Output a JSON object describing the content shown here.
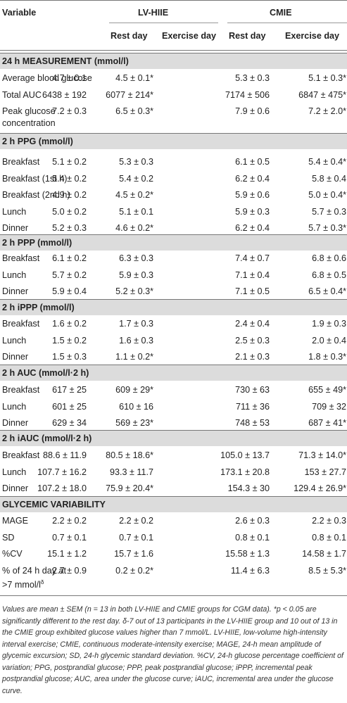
{
  "header": {
    "variable": "Variable",
    "group1": "LV-HIIE",
    "group2": "CMIE",
    "rest": "Rest day",
    "exercise": "Exercise day"
  },
  "sections": [
    {
      "title": "24 h MEASUREMENT (mmol/l)",
      "rows": [
        {
          "label": "Average blood glucose",
          "v": [
            "4.7 ± 0.1",
            "4.5 ± 0.1*",
            "5.3 ± 0.3",
            "5.1 ± 0.3*"
          ]
        },
        {
          "label": "Total AUC",
          "v": [
            "6438 ± 192",
            "6077 ± 214*",
            "7174 ± 506",
            "6847 ± 475*"
          ]
        },
        {
          "label": "Peak glucose",
          "label2": "concentration",
          "v": [
            "7.2 ± 0.3",
            "6.5 ± 0.3*",
            "7.9 ± 0.6",
            "7.2 ± 2.0*"
          ]
        }
      ]
    },
    {
      "title": "2 h PPG (mmol/l)",
      "rows": [
        {
          "label": "Breakfast",
          "v": [
            "5.1 ± 0.2",
            "5.3 ± 0.3",
            "6.1 ± 0.5",
            "5.4 ± 0.4*"
          ]
        },
        {
          "label": "Breakfast (1st h)",
          "v": [
            "5.4 ± 0.2",
            "5.4 ± 0.2",
            "6.2 ± 0.4",
            "5.8 ± 0.4"
          ]
        },
        {
          "label": "Breakfast (2nd h)",
          "v": [
            "4.9 ± 0.2",
            "4.5 ± 0.2*",
            "5.9 ± 0.6",
            "5.0 ± 0.4*"
          ]
        },
        {
          "label": "Lunch",
          "v": [
            "5.0 ± 0.2",
            "5.1 ± 0.1",
            "5.9 ± 0.3",
            "5.7 ± 0.3"
          ]
        },
        {
          "label": "Dinner",
          "v": [
            "5.2 ± 0.3",
            "4.6 ± 0.2*",
            "6.2 ± 0.4",
            "5.7 ± 0.3*"
          ]
        }
      ]
    },
    {
      "title": "2 h PPP (mmol/l)",
      "rows": [
        {
          "label": "Breakfast",
          "v": [
            "6.1 ± 0.2",
            "6.3 ± 0.3",
            "7.4 ± 0.7",
            "6.8 ± 0.6"
          ]
        },
        {
          "label": "Lunch",
          "v": [
            "5.7 ± 0.2",
            "5.9 ± 0.3",
            "7.1 ± 0.4",
            "6.8 ± 0.5"
          ]
        },
        {
          "label": "Dinner",
          "v": [
            "5.9 ± 0.4",
            "5.2 ± 0.3*",
            "7.1 ± 0.5",
            "6.5 ± 0.4*"
          ]
        }
      ]
    },
    {
      "title": "2 h iPPP (mmol/l)",
      "rows": [
        {
          "label": "Breakfast",
          "v": [
            "1.6 ± 0.2",
            "1.7 ± 0.3",
            "2.4 ± 0.4",
            "1.9 ± 0.3"
          ]
        },
        {
          "label": "Lunch",
          "v": [
            "1.5 ± 0.2",
            "1.6 ± 0.3",
            "2.5 ± 0.3",
            "2.0 ± 0.4"
          ]
        },
        {
          "label": "Dinner",
          "v": [
            "1.5 ± 0.3",
            "1.1 ± 0.2*",
            "2.1 ± 0.3",
            "1.8 ± 0.3*"
          ]
        }
      ]
    },
    {
      "title": "2 h AUC (mmol/l·2 h)",
      "rows": [
        {
          "label": "Breakfast",
          "v": [
            "617 ± 25",
            "609 ± 29*",
            "730 ± 63",
            "655 ± 49*"
          ]
        },
        {
          "label": "Lunch",
          "v": [
            "601 ± 25",
            "610 ± 16",
            "711 ± 36",
            "709 ± 32"
          ]
        },
        {
          "label": "Dinner",
          "v": [
            "629 ± 34",
            "569 ± 23*",
            "748 ± 53",
            "687 ± 41*"
          ]
        }
      ]
    },
    {
      "title": "2 h iAUC (mmol/l·2 h)",
      "rows": [
        {
          "label": "Breakfast",
          "v": [
            "88.6 ± 11.9",
            "80.5 ± 18.6*",
            "105.0 ± 13.7",
            "71.3 ± 14.0*"
          ]
        },
        {
          "label": "Lunch",
          "v": [
            "107.7 ± 16.2",
            "93.3 ± 11.7",
            "173.1 ± 20.8",
            "153 ± 27.7"
          ]
        },
        {
          "label": "Dinner",
          "v": [
            "107.2 ± 18.0",
            "75.9 ± 20.4*",
            "154.3 ± 30",
            "129.4 ± 26.9*"
          ]
        }
      ]
    },
    {
      "title": "GLYCEMIC VARIABILITY",
      "rows": [
        {
          "label": "MAGE",
          "v": [
            "2.2 ± 0.2",
            "2.2 ± 0.2",
            "2.6 ± 0.3",
            "2.2 ± 0.3"
          ]
        },
        {
          "label": "SD",
          "v": [
            "0.7 ± 0.1",
            "0.7 ± 0.1",
            "0.8 ± 0.1",
            "0.8 ± 0.1"
          ]
        },
        {
          "label": "%CV",
          "v": [
            "15.1 ± 1.2",
            "15.7 ± 1.6",
            "15.58 ± 1.3",
            "14.58 ± 1.7"
          ]
        },
        {
          "label": "% of 24 h day at",
          "label2": ">7 mmol/l",
          "label2_sup": "δ",
          "v": [
            "2.7 ± 0.9",
            "0.2 ± 0.2*",
            "11.4 ± 6.3",
            "8.5 ± 5.3*"
          ]
        }
      ]
    }
  ],
  "footnote": "Values are mean ± SEM (n = 13 in both LV-HIIE and CMIE groups for CGM data). *p < 0.05 are significantly different to the rest day. δ-7 out of 13 participants in the LV-HIIE group and 10 out of 13 in the CMIE group exhibited glucose values higher than 7 mmol/L. LV-HIIE, low-volume high-intensity interval exercise; CMIE, continuous moderate-intensity exercise; MAGE, 24-h mean amplitude of glycemic excursion; SD, 24-h glycemic standard deviation. %CV, 24-h glucose percentage coefficient of variation; PPG, postprandial glucose; PPP, peak postprandial glucose; iPPP, incremental peak postprandial glucose; AUC, area under the glucose curve; iAUC, incremental area under the glucose curve."
}
